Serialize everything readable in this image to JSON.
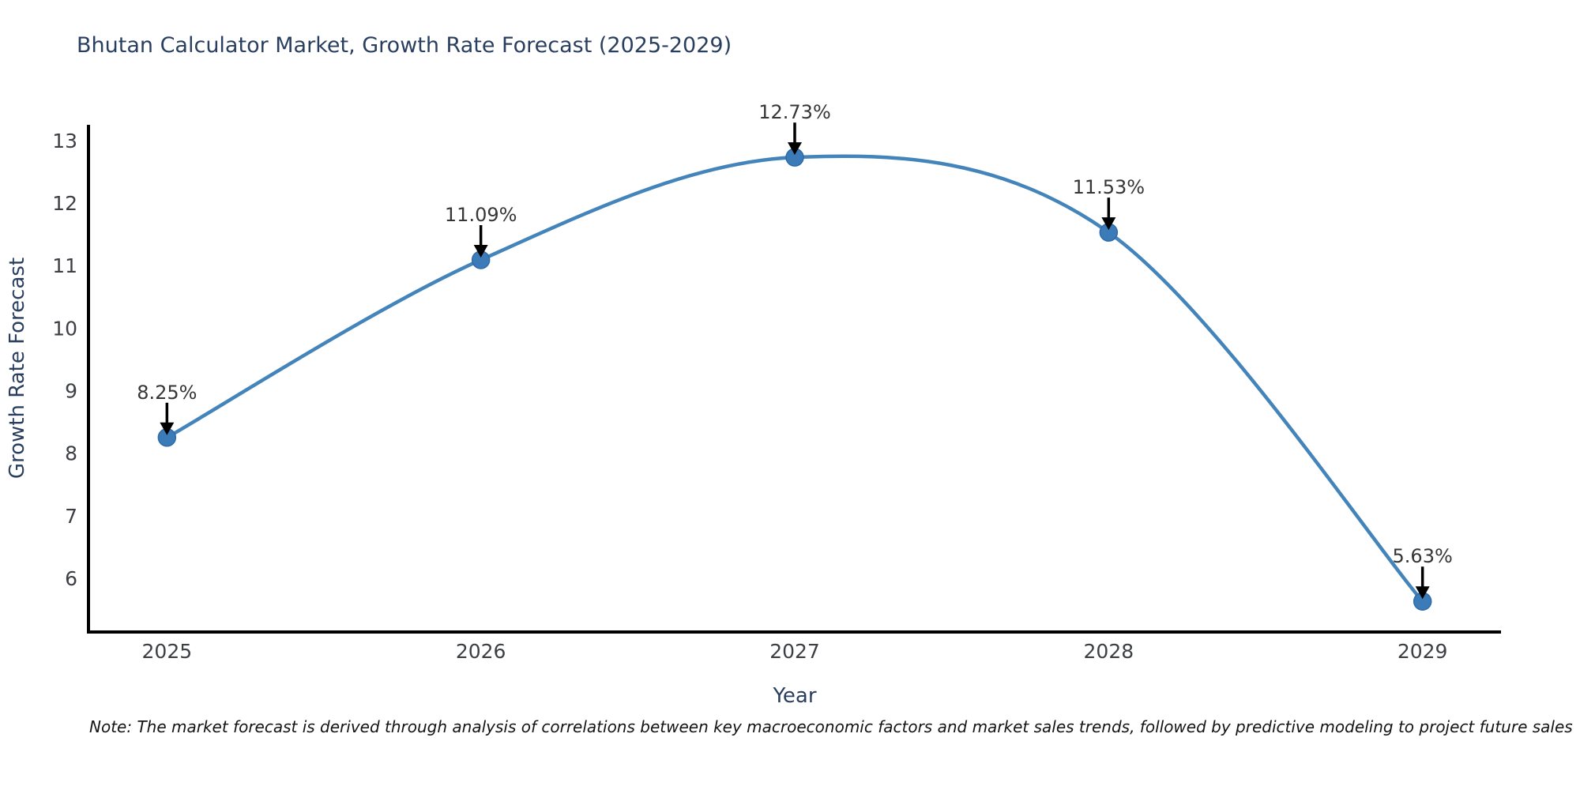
{
  "title": "Bhutan Calculator Market, Growth Rate Forecast (2025-2029)",
  "note": "Note: The market forecast is derived through analysis of correlations between key macroeconomic factors and market sales trends, followed by predictive modeling to project future sales",
  "chart_data": {
    "type": "line",
    "title": "Bhutan Calculator Market, Growth Rate Forecast (2025-2029)",
    "xlabel": "Year",
    "ylabel": "Growth Rate Forecast",
    "x": [
      2025,
      2026,
      2027,
      2028,
      2029
    ],
    "values": [
      8.25,
      11.09,
      12.73,
      11.53,
      5.63
    ],
    "point_labels": [
      "8.25%",
      "11.09%",
      "12.73%",
      "11.53%",
      "5.63%"
    ],
    "x_ticks": [
      2025,
      2026,
      2027,
      2028,
      2029
    ],
    "y_ticks": [
      6,
      7,
      8,
      9,
      10,
      11,
      12,
      13
    ],
    "xlim": [
      2024.75,
      2029.25
    ],
    "ylim": [
      5.14,
      13.25
    ],
    "grid": false,
    "legend": "none",
    "line_shape": "spline",
    "colors": {
      "line": "#4384bb",
      "marker": "#3b7bb7",
      "marker_edge": "#2f6ba8",
      "axis": "#000000",
      "title_text": "#2a3f5f",
      "tick_text": "#3d3f44",
      "label_text": "#363636",
      "arrow": "#000000"
    }
  }
}
